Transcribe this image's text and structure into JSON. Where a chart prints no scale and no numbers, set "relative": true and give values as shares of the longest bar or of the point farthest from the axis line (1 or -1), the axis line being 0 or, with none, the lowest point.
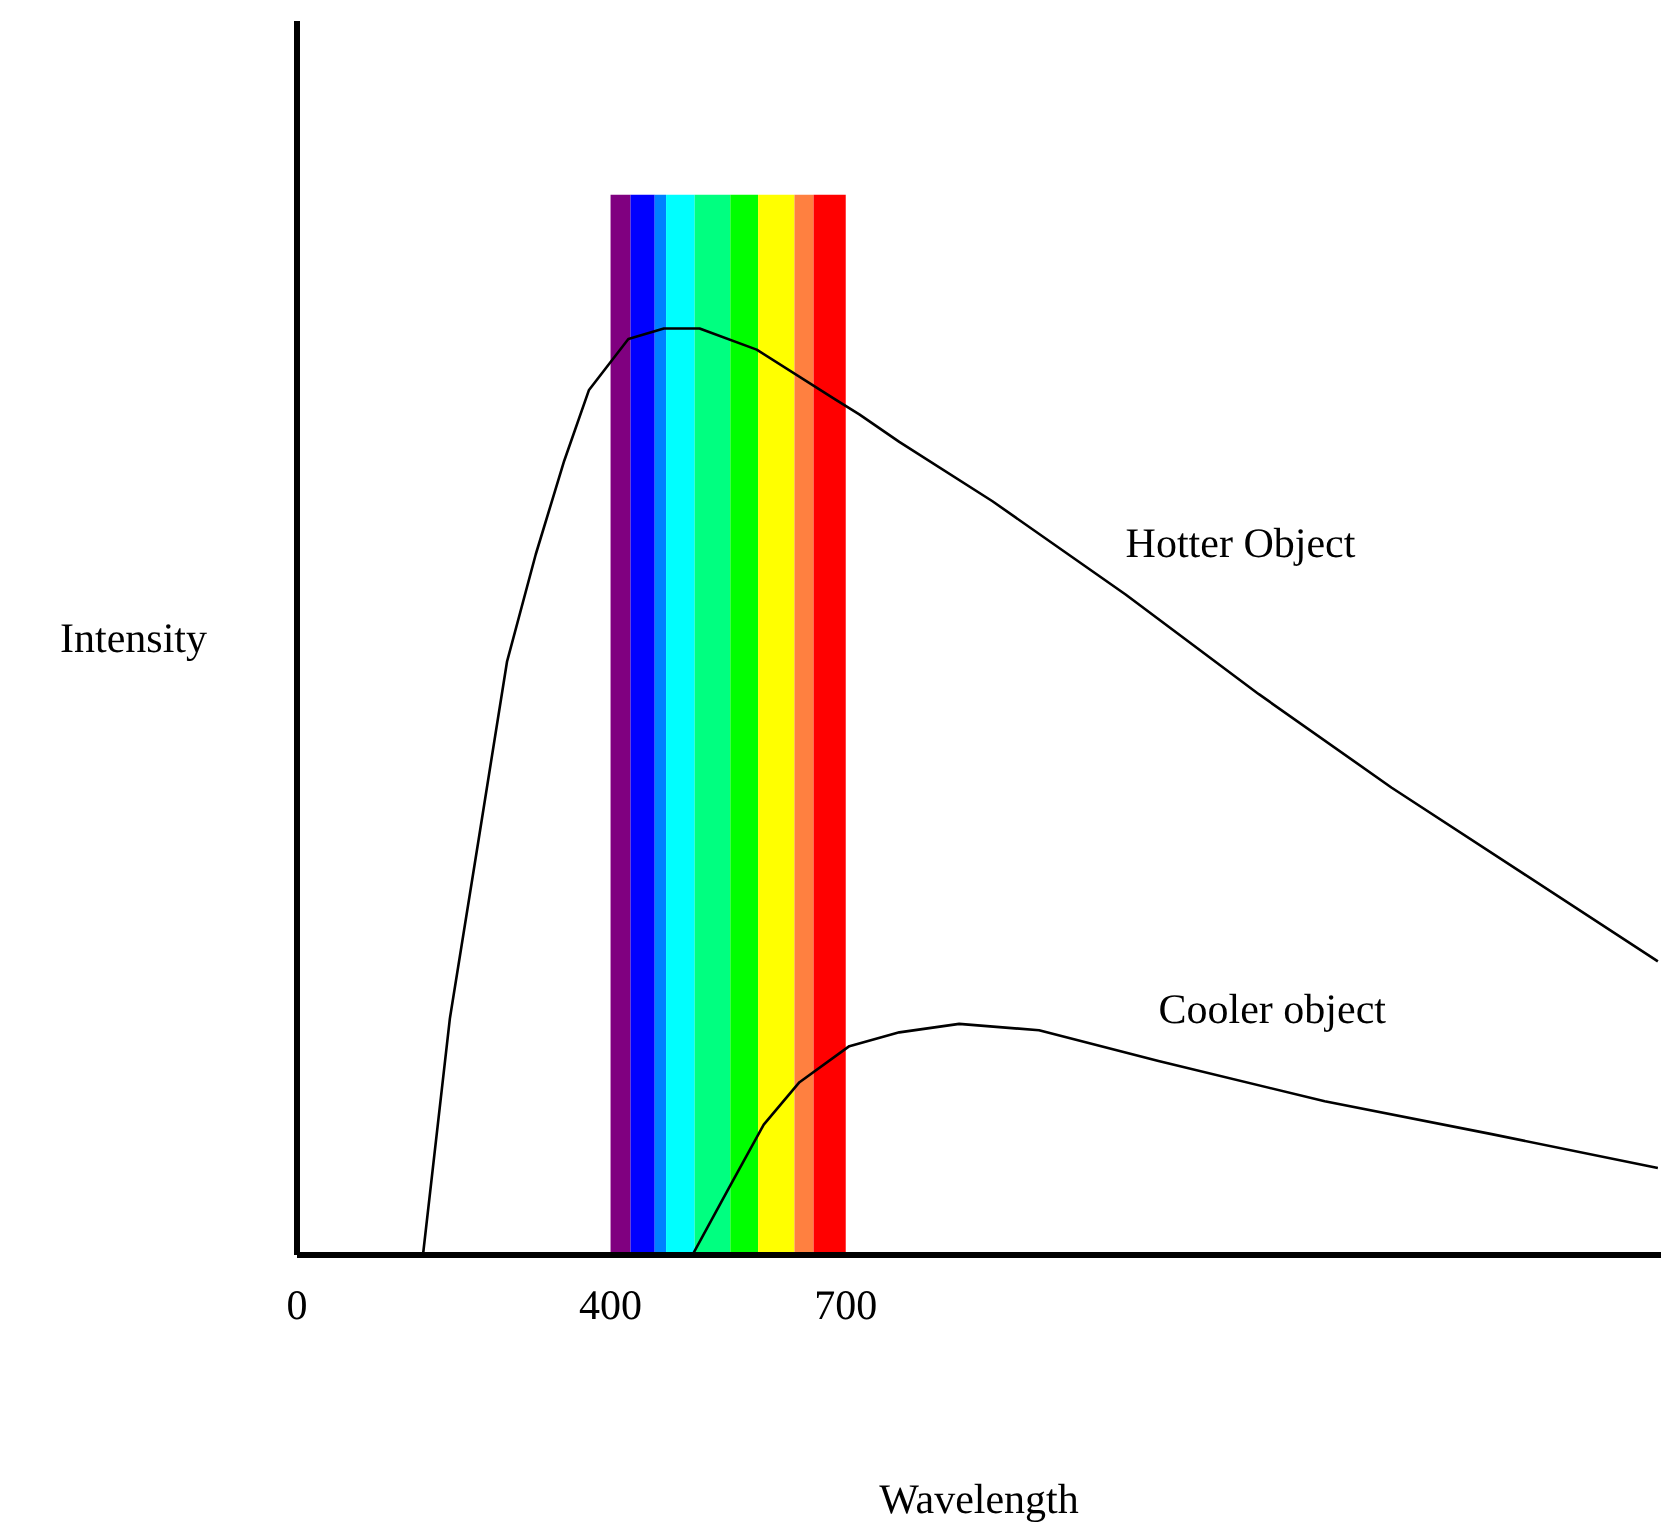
{
  "chart_data": {
    "type": "line",
    "relative": true,
    "xlabel": "Wavelength",
    "ylabel": "Intensity",
    "xlim": [
      0,
      1740
    ],
    "xticks": [
      0,
      400,
      700
    ],
    "grid": false,
    "marker": "none",
    "line_style": "solid",
    "series": [
      {
        "type": "histogram",
        "bins": [
          400,
          425.5,
          456.3,
          470.8,
          507.3,
          552.8,
          588.2,
          634.6,
          659.0,
          700
        ],
        "values": [
          1,
          1,
          1,
          1,
          1,
          1,
          1,
          1,
          1
        ],
        "colors": [
          "#800080",
          "#0000ff",
          "#0080ff",
          "#00ffff",
          "#00ff80",
          "#00ff00",
          "#ffff00",
          "#ff8040",
          "#ff0000"
        ]
      },
      {
        "name": "Hotter Object",
        "color": "#000000",
        "x": [
          160.7,
          195,
          231.7,
          268,
          304.6,
          340.8,
          372.5,
          422.7,
          468,
          513.6,
          586.4,
          686.5,
          717.3,
          768.3,
          887.2,
          1057,
          1227,
          1396,
          1566,
          1736
        ],
        "values": [
          0,
          0.223,
          0.392,
          0.56,
          0.661,
          0.749,
          0.816,
          0.864,
          0.874,
          0.874,
          0.854,
          0.807,
          0.793,
          0.767,
          0.711,
          0.623,
          0.529,
          0.441,
          0.359,
          0.277
        ]
      },
      {
        "name": "Cooler object",
        "color": "#000000",
        "x": [
          504.4,
          550,
          595.4,
          641,
          704.6,
          768.3,
          844.7,
          946.6,
          1099,
          1311,
          1524,
          1736
        ],
        "values": [
          0,
          0.062,
          0.123,
          0.163,
          0.197,
          0.21,
          0.218,
          0.212,
          0.183,
          0.145,
          0.114,
          0.082
        ]
      }
    ]
  }
}
